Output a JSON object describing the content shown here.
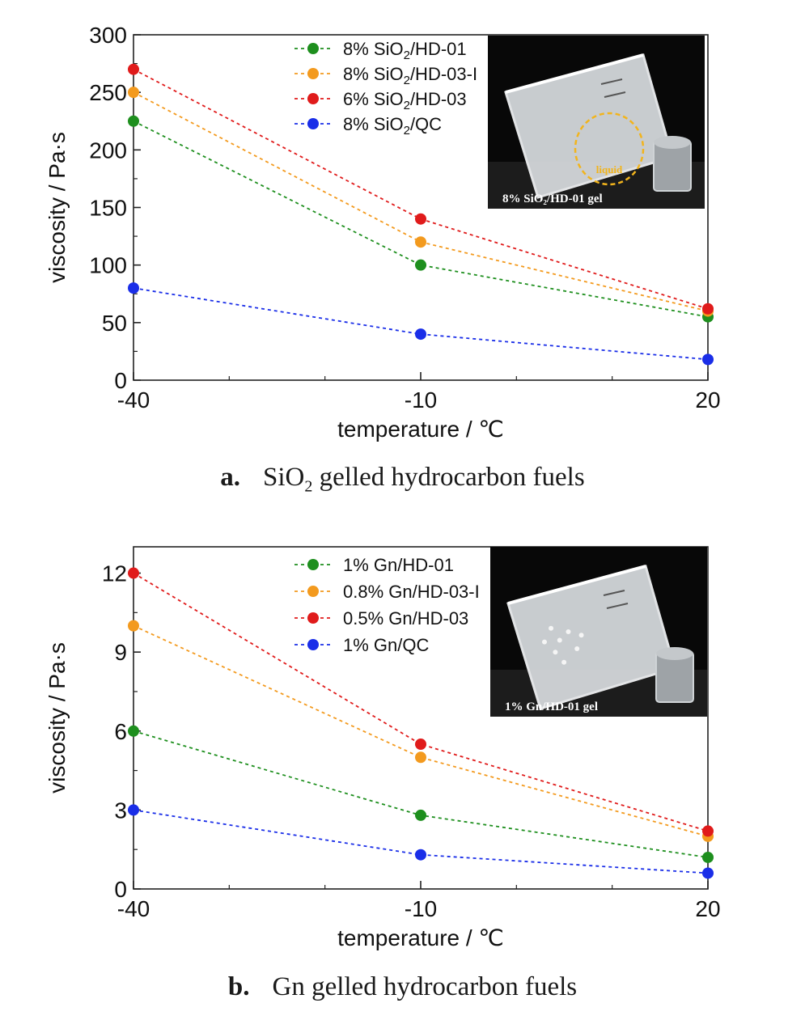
{
  "chart_data": [
    {
      "type": "line",
      "panel": "a",
      "caption_label": "a.",
      "caption_pre": "SiO",
      "caption_sub": "2",
      "caption_post": " gelled hydrocarbon fuels",
      "xlabel": "temperature / ℃",
      "ylabel": "viscosity / Pa·s",
      "x": [
        -40,
        -10,
        20
      ],
      "xlim": [
        -40,
        20
      ],
      "ylim": [
        0,
        300
      ],
      "xticks": [
        -40,
        -10,
        20
      ],
      "yticks": [
        0,
        50,
        100,
        150,
        200,
        250,
        300
      ],
      "grid": false,
      "legend_position": "top-center",
      "series": [
        {
          "name_pre": "8% SiO",
          "name_sub": "2",
          "name_post": "/HD-01",
          "color": "#1e8f1e",
          "values": [
            225,
            100,
            55
          ]
        },
        {
          "name_pre": "8% SiO",
          "name_sub": "2",
          "name_post": "/HD-03-I",
          "color": "#f39a1e",
          "values": [
            250,
            120,
            60
          ]
        },
        {
          "name_pre": "6% SiO",
          "name_sub": "2",
          "name_post": "/HD-03",
          "color": "#e01b1b",
          "values": [
            270,
            140,
            62
          ]
        },
        {
          "name_pre": "8% SiO",
          "name_sub": "2",
          "name_post": "/QC",
          "color": "#1a2ee8",
          "values": [
            80,
            40,
            18
          ]
        }
      ],
      "inset": {
        "caption": "8% SiO₂/HD-01 gel",
        "annotation": "liquid"
      }
    },
    {
      "type": "line",
      "panel": "b",
      "caption_label": "b.",
      "caption_pre": "Gn gelled hydrocarbon fuels",
      "caption_sub": "",
      "caption_post": "",
      "xlabel": "temperature / ℃",
      "ylabel": "viscosity / Pa·s",
      "x": [
        -40,
        -10,
        20
      ],
      "xlim": [
        -40,
        20
      ],
      "ylim": [
        0,
        13
      ],
      "xticks": [
        -40,
        -10,
        20
      ],
      "yticks": [
        0,
        3,
        6,
        9,
        12
      ],
      "grid": false,
      "legend_position": "top-center",
      "series": [
        {
          "name_pre": "1% Gn/HD-01",
          "name_sub": "",
          "name_post": "",
          "color": "#1e8f1e",
          "values": [
            6.0,
            2.8,
            1.2
          ]
        },
        {
          "name_pre": "0.8% Gn/HD-03-I",
          "name_sub": "",
          "name_post": "",
          "color": "#f39a1e",
          "values": [
            10.0,
            5.0,
            2.0
          ]
        },
        {
          "name_pre": "0.5% Gn/HD-03",
          "name_sub": "",
          "name_post": "",
          "color": "#e01b1b",
          "values": [
            12.0,
            5.5,
            2.2
          ]
        },
        {
          "name_pre": "1% Gn/QC",
          "name_sub": "",
          "name_post": "",
          "color": "#1a2ee8",
          "values": [
            3.0,
            1.3,
            0.6
          ]
        }
      ],
      "inset": {
        "caption": "1% Gn/HD-01 gel",
        "annotation": ""
      }
    }
  ]
}
